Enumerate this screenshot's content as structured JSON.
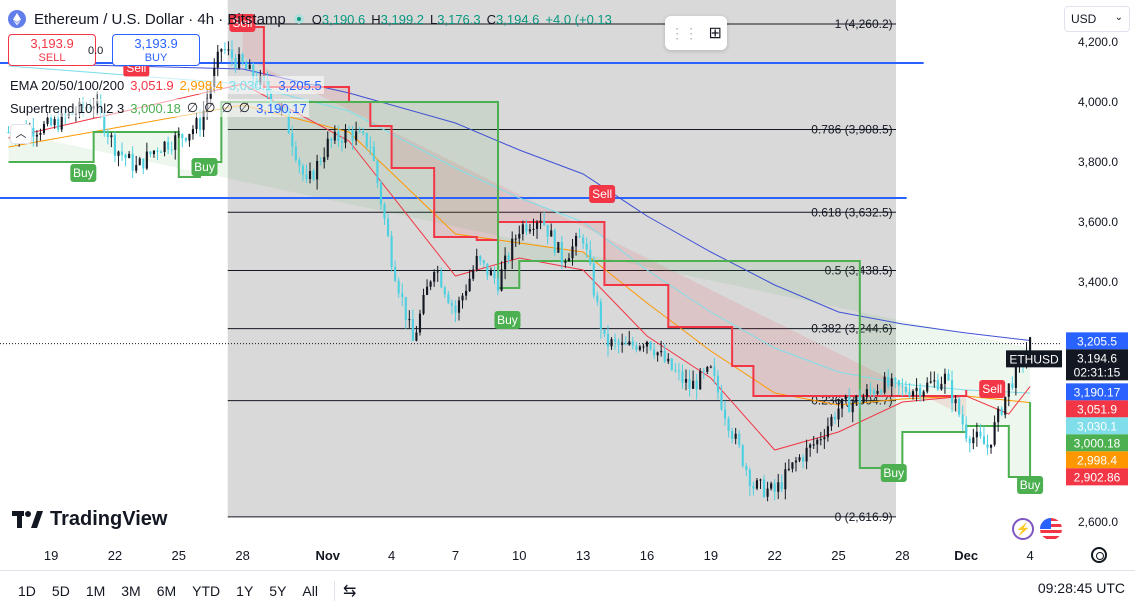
{
  "header": {
    "symbol_title": "Ethereum / U.S. Dollar · 4h · Bitstamp",
    "o_label": "O",
    "o_value": "3,190.6",
    "h_label": "H",
    "h_value": "3,199.2",
    "l_label": "L",
    "l_value": "3,176.3",
    "c_label": "C",
    "c_value": "3,194.6",
    "change": "+4.0 (+0.13"
  },
  "trade": {
    "sell_price": "3,193.9",
    "sell_label": "SELL",
    "spread": "0.0",
    "buy_price": "3,193.9",
    "buy_label": "BUY"
  },
  "indicators": {
    "ema_label": "EMA 20/50/100/200",
    "ema_values": [
      "3,051.9",
      "2,998.4",
      "3,030.1",
      "3,205.5"
    ],
    "ema_colors": [
      "#f23645",
      "#ff9800",
      "#80deea",
      "#2962ff"
    ],
    "supertrend_label": "Supertrend 10 hl2 3",
    "supertrend_values": [
      "3,000.18",
      "∅",
      "∅",
      "∅",
      "∅",
      "3,190.17"
    ],
    "supertrend_colors": [
      "#4caf50",
      "#131722",
      "#131722",
      "#131722",
      "#131722",
      "#2962ff"
    ]
  },
  "currency_selector": {
    "value": "USD",
    "icon": "chevron-down-icon"
  },
  "price_axis": {
    "ticks": [
      "4,200.0",
      "4,000.0",
      "3,800.0",
      "3,600.0",
      "3,400.0",
      "2,600.0"
    ],
    "tick_values": [
      4200,
      4000,
      3800,
      3600,
      3400,
      2600
    ],
    "labels": [
      {
        "text": "3,205.5",
        "value": 3205.5,
        "color": "#2962ff"
      },
      {
        "text": "ETHUSD",
        "value": 3194.6,
        "color": "#131722",
        "tag": true
      },
      {
        "text": "3,194.6",
        "value": 3194.6,
        "color": "#131722"
      },
      {
        "text": "02:31:15",
        "value": 3194.6,
        "color": "#131722"
      },
      {
        "text": "3,190.17",
        "value": 3190.17,
        "color": "#2962ff"
      },
      {
        "text": "3,051.9",
        "value": 3051.9,
        "color": "#f23645"
      },
      {
        "text": "3,030.1",
        "value": 3030.1,
        "color": "#80deea"
      },
      {
        "text": "3,000.18",
        "value": 3000.18,
        "color": "#4caf50"
      },
      {
        "text": "2,998.4",
        "value": 2998.4,
        "color": "#ff9800"
      },
      {
        "text": "2,902.86",
        "value": 2902.86,
        "color": "#f23645"
      }
    ]
  },
  "time_axis": {
    "labels": [
      "19",
      "22",
      "25",
      "28",
      "Nov",
      "4",
      "7",
      "10",
      "13",
      "16",
      "19",
      "22",
      "25",
      "28",
      "Dec",
      "4"
    ]
  },
  "fibonacci": [
    {
      "level": "1",
      "value": 4260.2,
      "label": "1 (4,260.2)"
    },
    {
      "level": "0.786",
      "value": 3908.5,
      "label": "0.786 (3,908.5)"
    },
    {
      "level": "0.618",
      "value": 3632.5,
      "label": "0.618 (3,632.5)"
    },
    {
      "level": "0.5",
      "value": 3438.5,
      "label": "0.5 (3,438.5)"
    },
    {
      "level": "0.382",
      "value": 3244.6,
      "label": "0.382 (3,244.6)"
    },
    {
      "level": "0.236",
      "value": 3004.7,
      "label": "0.236 (3,004.7)"
    },
    {
      "level": "0",
      "value": 2616.9,
      "label": "0 (2,616.9)"
    }
  ],
  "signals": [
    {
      "text": "Sell",
      "type": "sell",
      "t": 0.32,
      "p": 4260
    },
    {
      "text": "Buy",
      "type": "buy",
      "t": 0.11,
      "p": 3760
    },
    {
      "text": "Buy",
      "type": "buy",
      "t": 0.27,
      "p": 3780
    },
    {
      "text": "Sell",
      "type": "sell",
      "t": 0.795,
      "p": 3690
    },
    {
      "text": "Buy",
      "type": "buy",
      "t": 0.67,
      "p": 3270
    },
    {
      "text": "Sell",
      "type": "sell",
      "t": 1.31,
      "p": 3040
    },
    {
      "text": "Buy",
      "type": "buy",
      "t": 1.18,
      "p": 2760
    },
    {
      "text": "Buy",
      "type": "buy",
      "t": 1.36,
      "p": 2720
    },
    {
      "text": "Sell",
      "type": "sell",
      "t": 0.18,
      "p": 4110
    }
  ],
  "bottom_bar": {
    "timeframes": [
      "1D",
      "5D",
      "1M",
      "3M",
      "6M",
      "YTD",
      "1Y",
      "5Y",
      "All"
    ],
    "clock": "09:28:45 UTC"
  },
  "logo_text": "TradingView",
  "chart_data": {
    "type": "candlestick",
    "symbol": "ETHUSD",
    "last_price": 3194.6,
    "y_range": [
      2540,
      4340
    ],
    "x_dates": [
      "Oct 19",
      "Oct 22",
      "Oct 25",
      "Oct 28",
      "Nov 1",
      "Nov 4",
      "Nov 7",
      "Nov 10",
      "Nov 13",
      "Nov 16",
      "Nov 19",
      "Nov 22",
      "Nov 25",
      "Nov 28",
      "Dec 1",
      "Dec 4"
    ],
    "close_path": [
      [
        "Oct 17",
        3900
      ],
      [
        "Oct 19",
        3920
      ],
      [
        "Oct 21",
        4000
      ],
      [
        "Oct 22",
        3850
      ],
      [
        "Oct 23",
        3780
      ],
      [
        "Oct 24",
        3850
      ],
      [
        "Oct 25",
        3880
      ],
      [
        "Oct 26",
        3930
      ],
      [
        "Oct 27",
        4180
      ],
      [
        "Oct 28",
        4120
      ],
      [
        "Oct 29",
        4050
      ],
      [
        "Oct 30",
        3950
      ],
      [
        "Oct 31",
        3720
      ],
      [
        "Nov 1",
        3860
      ],
      [
        "Nov 2",
        3900
      ],
      [
        "Nov 3",
        3860
      ],
      [
        "Nov 4",
        3480
      ],
      [
        "Nov 5",
        3200
      ],
      [
        "Nov 6",
        3460
      ],
      [
        "Nov 7",
        3300
      ],
      [
        "Nov 8",
        3470
      ],
      [
        "Nov 9",
        3400
      ],
      [
        "Nov 10",
        3580
      ],
      [
        "Nov 11",
        3620
      ],
      [
        "Nov 12",
        3480
      ],
      [
        "Nov 13",
        3550
      ],
      [
        "Nov 14",
        3200
      ],
      [
        "Nov 15",
        3180
      ],
      [
        "Nov 16",
        3210
      ],
      [
        "Nov 17",
        3120
      ],
      [
        "Nov 18",
        3050
      ],
      [
        "Nov 19",
        3100
      ],
      [
        "Nov 20",
        2900
      ],
      [
        "Nov 21",
        2720
      ],
      [
        "Nov 22",
        2700
      ],
      [
        "Nov 23",
        2800
      ],
      [
        "Nov 24",
        2870
      ],
      [
        "Nov 25",
        2980
      ],
      [
        "Nov 26",
        3010
      ],
      [
        "Nov 27",
        3060
      ],
      [
        "Nov 28",
        3040
      ],
      [
        "Nov 29",
        3050
      ],
      [
        "Nov 30",
        3080
      ],
      [
        "Dec 1",
        2900
      ],
      [
        "Dec 2",
        2850
      ],
      [
        "Dec 3",
        3050
      ],
      [
        "Dec 4",
        3195
      ]
    ],
    "ema_20": [
      [
        "Oct 17",
        3880
      ],
      [
        "Oct 28",
        4060
      ],
      [
        "Nov 2",
        3870
      ],
      [
        "Nov 7",
        3420
      ],
      [
        "Nov 10",
        3480
      ],
      [
        "Nov 13",
        3440
      ],
      [
        "Nov 16",
        3220
      ],
      [
        "Nov 19",
        3080
      ],
      [
        "Nov 22",
        2840
      ],
      [
        "Nov 25",
        2900
      ],
      [
        "Nov 28",
        3000
      ],
      [
        "Dec 1",
        3020
      ],
      [
        "Dec 3",
        2960
      ],
      [
        "Dec 4",
        3052
      ]
    ],
    "ema_50": [
      [
        "Oct 17",
        3850
      ],
      [
        "Oct 28",
        3990
      ],
      [
        "Nov 2",
        3900
      ],
      [
        "Nov 7",
        3560
      ],
      [
        "Nov 10",
        3530
      ],
      [
        "Nov 13",
        3500
      ],
      [
        "Nov 16",
        3330
      ],
      [
        "Nov 19",
        3170
      ],
      [
        "Nov 22",
        3030
      ],
      [
        "Nov 25",
        2990
      ],
      [
        "Nov 28",
        3010
      ],
      [
        "Dec 1",
        3020
      ],
      [
        "Dec 4",
        2998
      ]
    ],
    "ema_100": [
      [
        "Oct 17",
        4120
      ],
      [
        "Oct 28",
        4060
      ],
      [
        "Nov 2",
        3970
      ],
      [
        "Nov 7",
        3780
      ],
      [
        "Nov 10",
        3680
      ],
      [
        "Nov 13",
        3600
      ],
      [
        "Nov 16",
        3440
      ],
      [
        "Nov 19",
        3300
      ],
      [
        "Nov 22",
        3180
      ],
      [
        "Nov 25",
        3100
      ],
      [
        "Nov 28",
        3060
      ],
      [
        "Dec 1",
        3040
      ],
      [
        "Dec 4",
        3030
      ]
    ],
    "ema_200": [
      [
        "Oct 17",
        4130
      ],
      [
        "Oct 28",
        4110
      ],
      [
        "Nov 2",
        4030
      ],
      [
        "Nov 7",
        3930
      ],
      [
        "Nov 10",
        3840
      ],
      [
        "Nov 13",
        3760
      ],
      [
        "Nov 16",
        3620
      ],
      [
        "Nov 19",
        3500
      ],
      [
        "Nov 22",
        3390
      ],
      [
        "Nov 25",
        3300
      ],
      [
        "Nov 28",
        3260
      ],
      [
        "Dec 1",
        3230
      ],
      [
        "Dec 4",
        3205
      ]
    ],
    "supertrend_bear": [
      [
        "Oct 28",
        4250
      ],
      [
        "Oct 29",
        4050
      ],
      [
        "Nov 2",
        4000
      ],
      [
        "Nov 3",
        3920
      ],
      [
        "Nov 4",
        3780
      ],
      [
        "Nov 6",
        3550
      ],
      [
        "Nov 8",
        3540
      ],
      [
        "Nov 9",
        3600
      ],
      [
        "Nov 13",
        3600
      ],
      [
        "Nov 14",
        3390
      ],
      [
        "Nov 17",
        3250
      ],
      [
        "Nov 20",
        3120
      ],
      [
        "Nov 21",
        3020
      ],
      [
        "Nov 25",
        3020
      ],
      [
        "Nov 30",
        3020
      ],
      [
        "Dec 1",
        3040
      ]
    ],
    "supertrend_bull": [
      [
        "Oct 17",
        3800
      ],
      [
        "Oct 21",
        3900
      ],
      [
        "Oct 25",
        3750
      ],
      [
        "Oct 26",
        3800
      ],
      [
        "Oct 27",
        4000
      ],
      [
        "Nov 9",
        3380
      ],
      [
        "Nov 10",
        3470
      ],
      [
        "Nov 13",
        3470
      ],
      [
        "Nov 26",
        2780
      ],
      [
        "Nov 28",
        2900
      ],
      [
        "Dec 1",
        2920
      ],
      [
        "Dec 3",
        2750
      ],
      [
        "Dec 4",
        3000
      ]
    ],
    "horizontal_lines": [
      {
        "value": 4130,
        "color": "#2962ff"
      },
      {
        "value": 3680,
        "color": "#2962ff"
      }
    ]
  }
}
